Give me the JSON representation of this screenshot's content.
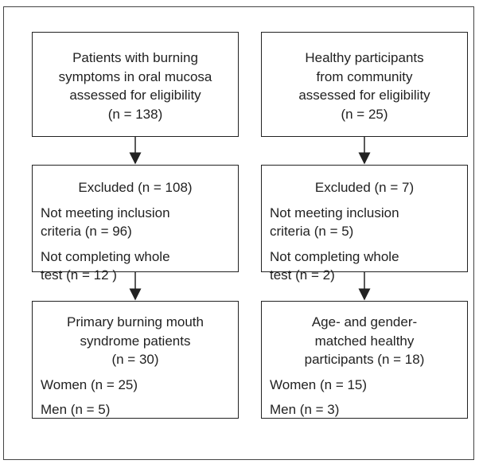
{
  "columns": [
    {
      "eligibility": {
        "lines": [
          "Patients with burning",
          "symptoms in oral mucosa",
          "assessed for eligibility",
          "(n = 138)"
        ]
      },
      "excluded": {
        "heading": "Excluded (n = 108)",
        "items": [
          [
            "Not meeting inclusion",
            "criteria (n = 96)"
          ],
          [
            "Not completing whole",
            "test (n = 12 )"
          ]
        ]
      },
      "final": {
        "lines": [
          "Primary burning mouth",
          "syndrome patients",
          "(n = 30)"
        ],
        "items": [
          [
            "Women (n = 25)"
          ],
          [
            "Men (n = 5)"
          ]
        ]
      }
    },
    {
      "eligibility": {
        "lines": [
          "Healthy participants",
          "from community",
          "assessed for eligibility",
          "(n = 25)"
        ]
      },
      "excluded": {
        "heading": "Excluded (n = 7)",
        "items": [
          [
            "Not meeting inclusion",
            "criteria (n = 5)"
          ],
          [
            "Not completing whole",
            "test (n = 2)"
          ]
        ]
      },
      "final": {
        "lines": [
          "Age- and gender-",
          "matched healthy",
          "participants (n = 18)"
        ],
        "items": [
          [
            "Women (n = 15)"
          ],
          [
            "Men (n = 3)"
          ]
        ]
      }
    }
  ]
}
